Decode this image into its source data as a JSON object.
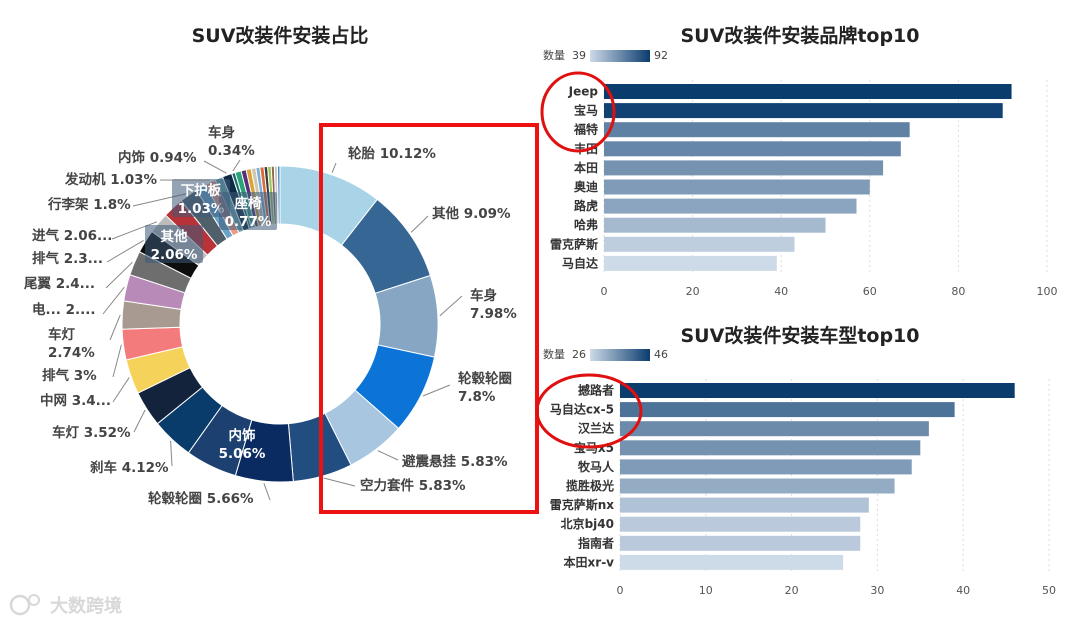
{
  "watermark": "大数跨境",
  "chart_data": [
    {
      "type": "pie",
      "title": "SUV改装件安装占比",
      "slices": [
        {
          "label": "轮胎 10.12%",
          "value": 10.12,
          "color": "#a9d3e6"
        },
        {
          "label": "其他 9.09%",
          "value": 9.09,
          "color": "#356694"
        },
        {
          "label": "车身 7.98%",
          "value": 7.98,
          "color": "#87a6c3"
        },
        {
          "label": "轮毂轮圈 7.8%",
          "value": 7.8,
          "color": "#0b74d6"
        },
        {
          "label": "避震悬挂 5.83%",
          "value": 5.83,
          "color": "#a9c6e0"
        },
        {
          "label": "空力套件 5.83%",
          "value": 5.83,
          "color": "#224d80"
        },
        {
          "label": "轮毂轮圈 5.66%",
          "value": 5.66,
          "color": "#0a2b62"
        },
        {
          "label": "内饰 5.06%",
          "value": 5.06,
          "color": "#1c4070"
        },
        {
          "label": "刹车 4.12%",
          "value": 4.12,
          "color": "#0a3c6b"
        },
        {
          "label": "车灯 3.52%",
          "value": 3.52,
          "color": "#12233b"
        },
        {
          "label": "中网 3.4...",
          "value": 3.4,
          "color": "#f5d25a"
        },
        {
          "label": "排气 3%",
          "value": 3.0,
          "color": "#f47b7b"
        },
        {
          "label": "车灯 2.74%",
          "value": 2.74,
          "color": "#a89a90"
        },
        {
          "label": "电... 2....",
          "value": 2.6,
          "color": "#b88ab8"
        },
        {
          "label": "尾翼 2.4...",
          "value": 2.4,
          "color": "#6e6e6e"
        },
        {
          "label": "排气 2.3...",
          "value": 2.3,
          "color": "#0d0d0d"
        },
        {
          "label": "进气 2.06...",
          "value": 2.06,
          "color": "#bcbcbc"
        },
        {
          "label": "其他 2.06%",
          "value": 2.06,
          "color": "#b83238"
        },
        {
          "label": "行李架 1.8%",
          "value": 1.8,
          "color": "#50606a"
        },
        {
          "label": "下护板 1.03%",
          "value": 1.03,
          "color": "#6aa1c6"
        },
        {
          "label": "发动机 1.03%",
          "value": 1.03,
          "color": "#ef9a86"
        },
        {
          "label": "座椅 0.77%",
          "value": 0.77,
          "color": "#6aa6aa"
        },
        {
          "label": "内饰 0.94%",
          "value": 0.94,
          "color": "#0e2a45"
        },
        {
          "label": "车身 0.34%",
          "value": 0.34,
          "color": "#1c6b6b"
        },
        {
          "label": "",
          "value": 0.6,
          "color": "#2aa37a"
        },
        {
          "label": "",
          "value": 0.5,
          "color": "#5a2f7a"
        },
        {
          "label": "",
          "value": 0.5,
          "color": "#d9a23b"
        },
        {
          "label": "",
          "value": 0.45,
          "color": "#cfc7b0"
        },
        {
          "label": "",
          "value": 0.4,
          "color": "#7fb0d6"
        },
        {
          "label": "",
          "value": 0.4,
          "color": "#dd6a3a"
        },
        {
          "label": "",
          "value": 0.35,
          "color": "#3c3c3c"
        },
        {
          "label": "",
          "value": 0.35,
          "color": "#9ec25a"
        },
        {
          "label": "",
          "value": 0.3,
          "color": "#8a6a4a"
        },
        {
          "label": "",
          "value": 0.3,
          "color": "#c9c9c9"
        },
        {
          "label": "",
          "value": 0.25,
          "color": "#4a8ac2"
        }
      ]
    },
    {
      "type": "bar",
      "title": "SUV改装件安装品牌top10",
      "categories": [
        "Jeep",
        "宝马",
        "福特",
        "丰田",
        "本田",
        "奥迪",
        "路虎",
        "哈弗",
        "雷克萨斯",
        "马自达"
      ],
      "values": [
        92,
        90,
        69,
        67,
        63,
        60,
        57,
        50,
        43,
        39
      ],
      "xlim": [
        0,
        100
      ],
      "xticks": [
        "0",
        "20",
        "40",
        "60",
        "80",
        "100"
      ],
      "legend": {
        "label": "数量",
        "min": "39",
        "max": "92"
      }
    },
    {
      "type": "bar",
      "title": "SUV改装件安装车型top10",
      "categories": [
        "撼路者",
        "马自达cx-5",
        "汉兰达",
        "宝马x5",
        "牧马人",
        "揽胜极光",
        "雷克萨斯nx",
        "北京bj40",
        "指南者",
        "本田xr-v"
      ],
      "values": [
        46,
        39,
        36,
        35,
        34,
        32,
        29,
        28,
        28,
        26
      ],
      "xlim": [
        0,
        50
      ],
      "xticks": [
        "0",
        "10",
        "20",
        "30",
        "40",
        "50"
      ],
      "legend": {
        "label": "数量",
        "min": "26",
        "max": "46"
      }
    }
  ]
}
